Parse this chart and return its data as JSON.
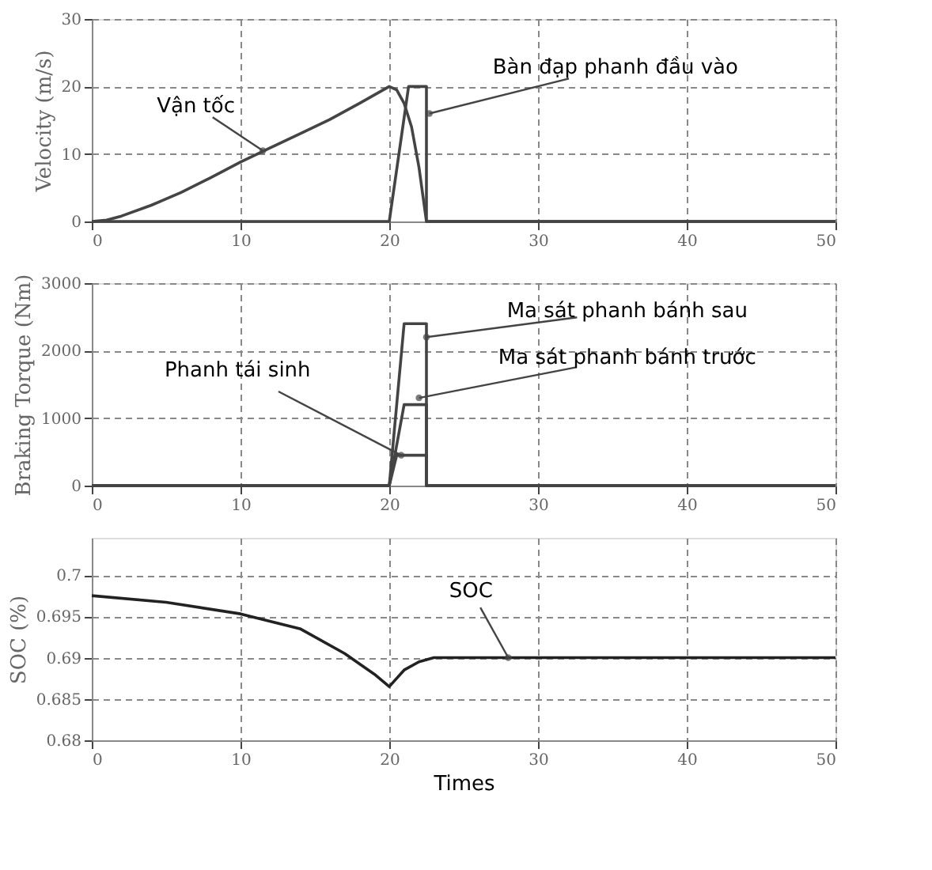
{
  "chart_data": [
    {
      "type": "line",
      "ylabel": "Velocity (m/s)",
      "xlim": [
        0,
        50
      ],
      "xticks": [
        0,
        10,
        20,
        30,
        40,
        50
      ],
      "ylim": [
        0,
        30
      ],
      "yticks": [
        0,
        10,
        20,
        30
      ],
      "grid": true,
      "line_style": "solid",
      "series": [
        {
          "color": "#444444",
          "x": [
            0,
            1,
            2,
            4,
            6,
            8,
            10,
            12,
            14,
            16,
            18,
            20,
            20.5,
            21,
            21.5,
            22,
            22.5,
            50
          ],
          "values": [
            0,
            0.2,
            0.8,
            2.4,
            4.3,
            6.5,
            8.8,
            10.9,
            13,
            15.1,
            17.5,
            20,
            19.5,
            17.5,
            14,
            8,
            0,
            0
          ]
        },
        {
          "color": "#444444",
          "x": [
            0,
            20,
            21.3,
            22.5,
            22.5,
            50
          ],
          "values": [
            0,
            0,
            20,
            20,
            0,
            0
          ]
        }
      ],
      "annotations": [
        {
          "text": "Vận tốc",
          "x": 11.5,
          "y": 10.5
        },
        {
          "text": "Bàn đạp phanh đầu vào",
          "x": 22.7,
          "y": 16
        }
      ]
    },
    {
      "type": "line",
      "ylabel": "Braking Torque (Nm)",
      "xlim": [
        0,
        50
      ],
      "xticks": [
        0,
        10,
        20,
        30,
        40,
        50
      ],
      "ylim": [
        0,
        3000
      ],
      "yticks": [
        0,
        1000,
        2000,
        3000
      ],
      "grid": true,
      "line_style": "solid",
      "series": [
        {
          "color": "#444444",
          "x": [
            0,
            20,
            21,
            22.5,
            22.5,
            50
          ],
          "values": [
            0,
            0,
            2400,
            2400,
            0,
            0
          ]
        },
        {
          "color": "#444444",
          "x": [
            0,
            20,
            21,
            22.5,
            22.5,
            50
          ],
          "values": [
            0,
            0,
            1200,
            1200,
            0,
            0
          ]
        },
        {
          "color": "#444444",
          "x": [
            0,
            20,
            20.5,
            22.5,
            22.5,
            50
          ],
          "values": [
            0,
            0,
            450,
            450,
            0,
            0
          ]
        }
      ],
      "annotations": [
        {
          "text": "Phanh tái sinh",
          "x": 20.8,
          "y": 450
        },
        {
          "text": "Ma sát phanh bánh sau",
          "x": 22.5,
          "y": 2200
        },
        {
          "text": "Ma sát phanh bánh trước",
          "x": 22,
          "y": 1300
        }
      ]
    },
    {
      "type": "line",
      "xlabel": "Times",
      "ylabel": "SOC (%)",
      "xlim": [
        0,
        50
      ],
      "xticks": [
        0,
        10,
        20,
        30,
        40,
        50
      ],
      "ylim": [
        0.68,
        0.7045
      ],
      "yticks": [
        0.68,
        0.685,
        0.69,
        0.695,
        0.7
      ],
      "grid": true,
      "line_style": "solid",
      "series": [
        {
          "color": "#222222",
          "x": [
            0,
            5,
            10,
            14,
            17,
            19,
            20,
            21,
            22,
            23,
            50
          ],
          "values": [
            0.6975,
            0.6967,
            0.6953,
            0.6935,
            0.6905,
            0.688,
            0.6865,
            0.6885,
            0.6895,
            0.69,
            0.69
          ]
        }
      ],
      "annotations": [
        {
          "text": "SOC",
          "x": 28,
          "y": 0.69
        }
      ]
    }
  ]
}
